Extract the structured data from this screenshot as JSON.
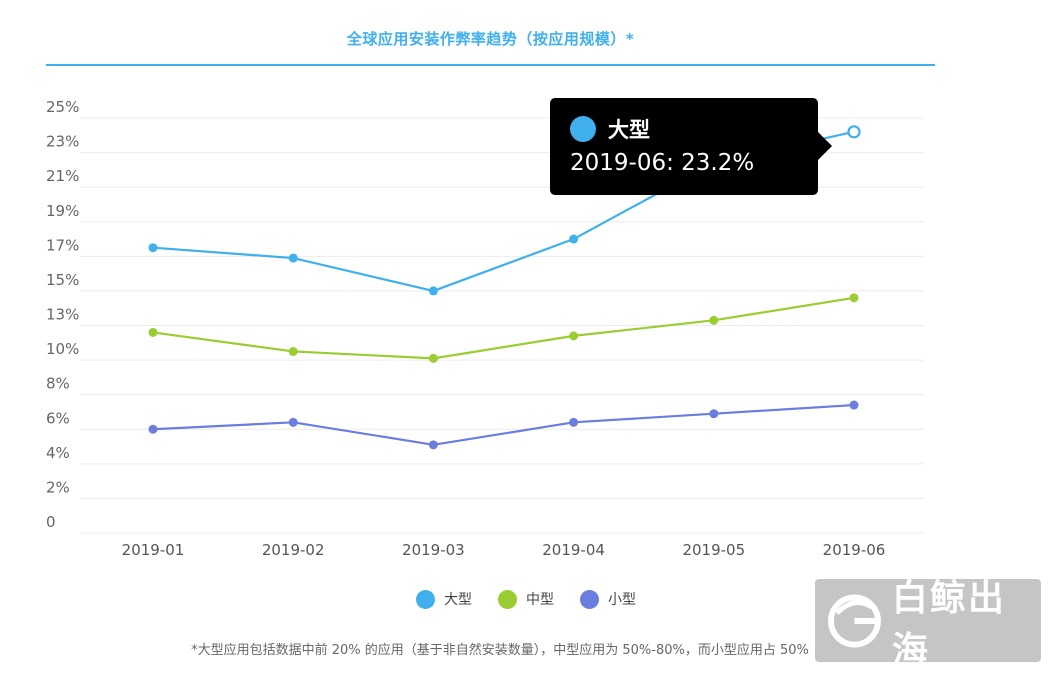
{
  "chart_data": {
    "type": "line",
    "title": "全球应用安装作弊率趋势（按应用规模）*",
    "x": [
      "2019-01",
      "2019-02",
      "2019-03",
      "2019-04",
      "2019-05",
      "2019-06"
    ],
    "yticks": [
      "0",
      "2%",
      "4%",
      "6%",
      "8%",
      "10%",
      "13%",
      "15%",
      "17%",
      "19%",
      "21%",
      "23%",
      "25%"
    ],
    "series": [
      {
        "name": "大型",
        "color": "#3fb0ec",
        "values": [
          16.5,
          15.9,
          14.0,
          17.0,
          21.4,
          23.2
        ]
      },
      {
        "name": "中型",
        "color": "#9acd32",
        "values": [
          11.6,
          10.5,
          10.1,
          11.4,
          12.3,
          13.6
        ]
      },
      {
        "name": "小型",
        "color": "#6b7ddf",
        "values": [
          6.0,
          6.4,
          5.1,
          6.4,
          6.9,
          7.4
        ]
      }
    ],
    "ylim": [
      0,
      24
    ],
    "grid": true,
    "legend_position": "bottom"
  },
  "tooltip": {
    "series": "大型",
    "text": "2019-06: 23.2%",
    "color": "#3fb0ec"
  },
  "footnote": "*大型应用包括数据中前 20% 的应用（基于非自然安装数量），中型应用为 50%-80%，而小型应用占 50%",
  "watermark": {
    "text": "白鲸出海",
    "logo_icon": "whale-g-logo"
  }
}
